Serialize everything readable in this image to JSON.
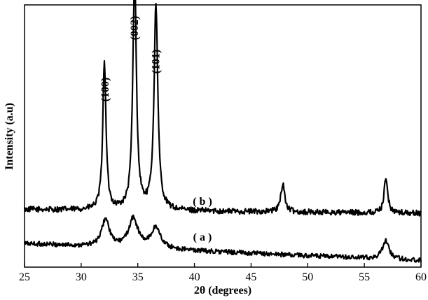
{
  "chart_data": {
    "type": "line",
    "title": "",
    "xlabel": "2θ (degrees)",
    "ylabel": "Intensity (a.u)",
    "xlim": [
      25,
      60
    ],
    "ylim": [
      0,
      100
    ],
    "x_ticks": [
      "25",
      "30",
      "35",
      "40",
      "45",
      "50",
      "55",
      "60"
    ],
    "y_tick_labels": "none",
    "grid": false,
    "legend": "none",
    "peak_labels": [
      {
        "text": "(100)",
        "x": 32.1
      },
      {
        "text": "(002)",
        "x": 34.7
      },
      {
        "text": "(101)",
        "x": 36.6
      }
    ],
    "series": [
      {
        "name": "( b )",
        "color": "#000000",
        "baseline": 22,
        "noise": 1.1,
        "peaks": [
          {
            "x": 32.05,
            "height": 57.0,
            "width": 0.17
          },
          {
            "x": 34.72,
            "height": 89.0,
            "width": 0.19
          },
          {
            "x": 36.6,
            "height": 78.5,
            "width": 0.2
          },
          {
            "x": 47.8,
            "height": 11.0,
            "width": 0.2
          },
          {
            "x": 56.9,
            "height": 14.0,
            "width": 0.18
          }
        ],
        "baseline_slope": -1.5
      },
      {
        "name": "( a )",
        "color": "#000000",
        "baseline": 9,
        "noise": 0.9,
        "peaks": [
          {
            "x": 32.15,
            "height": 10.5,
            "width": 0.4
          },
          {
            "x": 34.6,
            "height": 11.0,
            "width": 0.5
          },
          {
            "x": 36.6,
            "height": 8.0,
            "width": 0.5
          },
          {
            "x": 56.9,
            "height": 7.0,
            "width": 0.35
          }
        ],
        "baseline_slope": -6.5
      }
    ]
  }
}
